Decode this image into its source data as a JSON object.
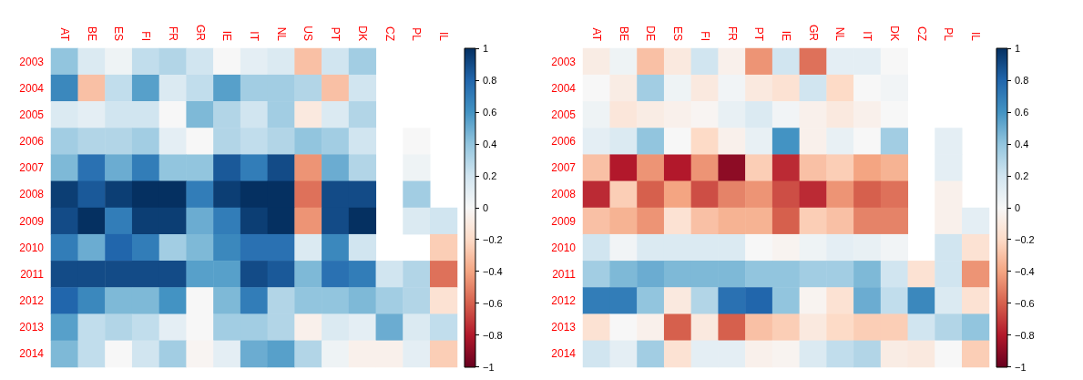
{
  "chart_data": [
    {
      "type": "heatmap",
      "categories": [
        "AT",
        "BE",
        "ES",
        "FI",
        "FR",
        "GR",
        "IE",
        "IT",
        "NL",
        "US",
        "PT",
        "DK",
        "CZ",
        "PL",
        "IL"
      ],
      "y_categories": [
        "2003",
        "2004",
        "2005",
        "2006",
        "2007",
        "2008",
        "2009",
        "2010",
        "2011",
        "2012",
        "2013",
        "2014"
      ],
      "cells": [
        [
          0.4,
          0.15,
          0.05,
          0.25,
          0.3,
          0.2,
          0,
          0.1,
          0.15,
          -0.3,
          0.2,
          0.35,
          null,
          null,
          null
        ],
        [
          0.65,
          -0.3,
          0.25,
          0.55,
          0.15,
          0.25,
          0.55,
          0.35,
          0.35,
          0.3,
          -0.3,
          0.2,
          null,
          null,
          null
        ],
        [
          0.15,
          0.1,
          0.2,
          0.2,
          0,
          0.45,
          0.3,
          0.2,
          0.35,
          -0.1,
          0.15,
          0.3,
          null,
          null,
          null
        ],
        [
          0.35,
          0.3,
          0.3,
          0.35,
          0.1,
          0,
          0.3,
          0.25,
          0.3,
          0.4,
          0.35,
          0.2,
          null,
          0,
          null
        ],
        [
          0.45,
          0.75,
          0.5,
          0.7,
          0.4,
          0.4,
          0.85,
          0.7,
          0.9,
          -0.45,
          0.5,
          0.3,
          null,
          0.05,
          null
        ],
        [
          0.95,
          0.85,
          0.95,
          1,
          1,
          0.7,
          0.95,
          1,
          1,
          -0.55,
          0.9,
          0.9,
          null,
          0.35,
          null
        ],
        [
          0.9,
          1,
          0.7,
          0.95,
          0.95,
          0.5,
          0.7,
          0.95,
          1,
          -0.45,
          0.9,
          1,
          null,
          0.15,
          0.2
        ],
        [
          0.7,
          0.5,
          0.8,
          0.7,
          0.35,
          0.45,
          0.65,
          0.75,
          0.75,
          0.15,
          0.65,
          0.2,
          null,
          null,
          -0.25
        ],
        [
          0.9,
          0.9,
          0.9,
          0.9,
          0.9,
          0.55,
          0.55,
          0.9,
          0.85,
          0.45,
          0.75,
          0.7,
          0.2,
          0.3,
          -0.55
        ],
        [
          0.8,
          0.65,
          0.45,
          0.45,
          0.6,
          0,
          0.45,
          0.7,
          0.3,
          0.4,
          0.4,
          0.45,
          0.35,
          0.3,
          -0.15
        ],
        [
          0.55,
          0.25,
          0.3,
          0.25,
          0.1,
          0,
          0.35,
          0.35,
          0.3,
          -0.05,
          0.15,
          0.1,
          0.5,
          0.15,
          0.25
        ],
        [
          0.45,
          0.25,
          0,
          0.2,
          0.35,
          -0.02,
          0.1,
          0.5,
          0.55,
          0.3,
          0.05,
          -0.05,
          -0.05,
          0.1,
          -0.25
        ]
      ],
      "clim": [
        -1,
        1
      ],
      "cticks": [
        {
          "value": -1,
          "label": "−1"
        },
        {
          "value": -0.8,
          "label": "−0.8"
        },
        {
          "value": -0.6,
          "label": "−0.6"
        },
        {
          "value": -0.4,
          "label": "−0.4"
        },
        {
          "value": -0.2,
          "label": "−0.2"
        },
        0,
        0.2,
        0.4,
        0.6,
        0.8,
        1
      ]
    },
    {
      "type": "heatmap",
      "categories": [
        "AT",
        "BE",
        "DE",
        "ES",
        "FI",
        "FR",
        "PT",
        "IE",
        "GR",
        "NL",
        "IT",
        "DK",
        "CZ",
        "PL",
        "IL"
      ],
      "y_categories": [
        "2003",
        "2004",
        "2005",
        "2006",
        "2007",
        "2008",
        "2009",
        "2010",
        "2011",
        "2012",
        "2013",
        "2014"
      ],
      "cells": [
        [
          -0.08,
          0.05,
          -0.3,
          -0.1,
          0.2,
          -0.05,
          -0.45,
          0.2,
          -0.55,
          0.1,
          0.1,
          0,
          null,
          null,
          null
        ],
        [
          0,
          -0.08,
          0.35,
          0.05,
          -0.1,
          0.03,
          -0.1,
          -0.15,
          0.2,
          -0.2,
          0,
          0.03,
          null,
          null,
          null
        ],
        [
          0.05,
          -0.12,
          -0.08,
          -0.05,
          -0.02,
          0.08,
          0.15,
          0.03,
          -0.05,
          -0.1,
          -0.05,
          0,
          null,
          null,
          null
        ],
        [
          0.1,
          0.15,
          0.4,
          0,
          -0.2,
          -0.05,
          0.08,
          0.6,
          -0.05,
          0.08,
          0,
          0.35,
          null,
          0.1,
          null
        ],
        [
          -0.3,
          -0.8,
          -0.45,
          -0.8,
          -0.45,
          -0.9,
          -0.25,
          -0.75,
          -0.3,
          -0.25,
          -0.4,
          -0.35,
          null,
          0.1,
          null
        ],
        [
          -0.75,
          -0.25,
          -0.6,
          -0.4,
          -0.65,
          -0.5,
          -0.45,
          -0.65,
          -0.75,
          -0.45,
          -0.6,
          -0.55,
          null,
          -0.05,
          null
        ],
        [
          -0.3,
          -0.35,
          -0.45,
          -0.15,
          -0.3,
          -0.35,
          -0.35,
          -0.6,
          -0.25,
          -0.3,
          -0.5,
          -0.5,
          null,
          -0.05,
          0.1
        ],
        [
          0.2,
          0.03,
          0.15,
          0.15,
          0.15,
          0.15,
          0,
          -0.03,
          0.05,
          0.1,
          0.08,
          0.03,
          null,
          0.2,
          -0.15
        ],
        [
          0.35,
          0.45,
          0.5,
          0.45,
          0.45,
          0.45,
          0.4,
          0.4,
          0.35,
          0.35,
          0.45,
          0.2,
          -0.15,
          0.2,
          -0.45
        ],
        [
          0.7,
          0.7,
          0.4,
          -0.1,
          0.3,
          0.75,
          0.8,
          0.4,
          -0.03,
          -0.15,
          0.5,
          0.25,
          0.65,
          0.15,
          -0.15
        ],
        [
          -0.15,
          0,
          -0.05,
          -0.6,
          -0.1,
          -0.6,
          -0.3,
          -0.25,
          -0.1,
          -0.2,
          -0.25,
          -0.25,
          0.2,
          0.3,
          0.4
        ],
        [
          0.2,
          0.1,
          0.35,
          -0.15,
          0.1,
          0.1,
          -0.05,
          -0.03,
          0.15,
          0.25,
          0.3,
          -0.08,
          -0.1,
          0,
          -0.25
        ]
      ],
      "clim": [
        -1,
        1
      ],
      "cticks": [
        {
          "value": -1,
          "label": "−1"
        },
        {
          "value": -0.8,
          "label": "−0.8"
        },
        {
          "value": -0.6,
          "label": "−0.6"
        },
        {
          "value": -0.4,
          "label": "−0.4"
        },
        {
          "value": -0.2,
          "label": "−0.2"
        },
        0,
        0.2,
        0.4,
        0.6,
        0.8,
        1
      ]
    }
  ]
}
